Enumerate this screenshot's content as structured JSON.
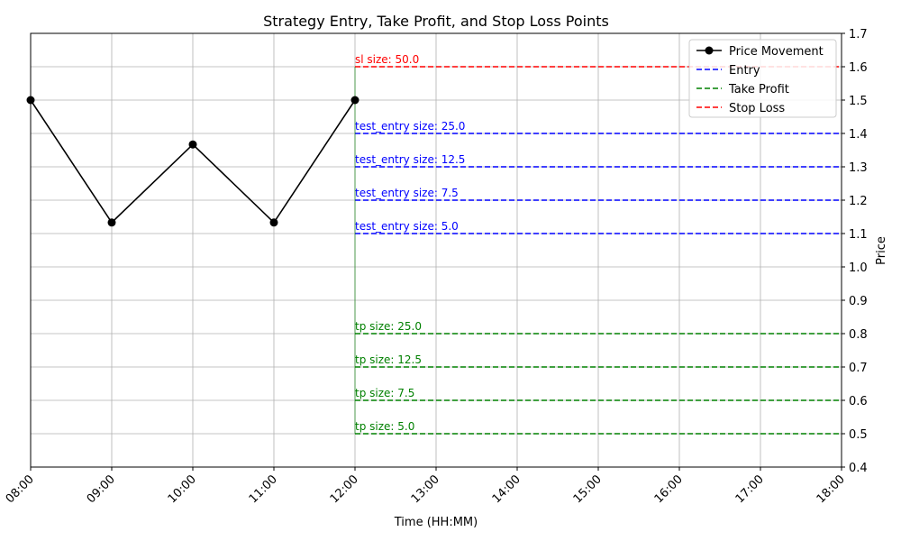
{
  "chart_data": {
    "type": "line",
    "title": "Strategy Entry, Take Profit, and Stop Loss Points",
    "xlabel": "Time (HH:MM)",
    "ylabel": "Price",
    "x_ticks": [
      "08:00",
      "09:00",
      "10:00",
      "11:00",
      "12:00",
      "13:00",
      "14:00",
      "15:00",
      "16:00",
      "17:00",
      "18:00"
    ],
    "xlim": [
      "08:00",
      "18:00"
    ],
    "ylim": [
      0.4,
      1.7
    ],
    "y_ticks": [
      0.4,
      0.5,
      0.6,
      0.7,
      0.8,
      0.9,
      1.0,
      1.1,
      1.2,
      1.3,
      1.4,
      1.5,
      1.6,
      1.7
    ],
    "y_axis_side": "right",
    "grid": true,
    "legend_position": "top-right",
    "series": [
      {
        "name": "Price Movement",
        "style": "solid-with-markers",
        "color": "#000000",
        "x": [
          "08:00",
          "09:00",
          "10:00",
          "11:00",
          "12:00"
        ],
        "y": [
          1.5,
          1.133,
          1.367,
          1.133,
          1.5
        ]
      }
    ],
    "levels": [
      {
        "group": "Stop Loss",
        "label": "sl size: 50.0",
        "price": 1.6,
        "start": "12:00",
        "end": "18:00",
        "color": "#ff0000"
      },
      {
        "group": "Entry",
        "label": "test_entry size: 25.0",
        "price": 1.4,
        "start": "12:00",
        "end": "18:00",
        "color": "#0000ff"
      },
      {
        "group": "Entry",
        "label": "test_entry size: 12.5",
        "price": 1.3,
        "start": "12:00",
        "end": "18:00",
        "color": "#0000ff"
      },
      {
        "group": "Entry",
        "label": "test_entry size: 7.5",
        "price": 1.2,
        "start": "12:00",
        "end": "18:00",
        "color": "#0000ff"
      },
      {
        "group": "Entry",
        "label": "test_entry size: 5.0",
        "price": 1.1,
        "start": "12:00",
        "end": "18:00",
        "color": "#0000ff"
      },
      {
        "group": "Take Profit",
        "label": "tp size: 25.0",
        "price": 0.8,
        "start": "12:00",
        "end": "18:00",
        "color": "#008000"
      },
      {
        "group": "Take Profit",
        "label": "tp size: 12.5",
        "price": 0.7,
        "start": "12:00",
        "end": "18:00",
        "color": "#008000"
      },
      {
        "group": "Take Profit",
        "label": "tp size: 7.5",
        "price": 0.6,
        "start": "12:00",
        "end": "18:00",
        "color": "#008000"
      },
      {
        "group": "Take Profit",
        "label": "tp size: 5.0",
        "price": 0.5,
        "start": "12:00",
        "end": "18:00",
        "color": "#008000"
      }
    ],
    "legend": [
      {
        "label": "Price Movement",
        "style": "solid-with-markers",
        "color": "#000000"
      },
      {
        "label": "Entry",
        "style": "dashed",
        "color": "#0000ff"
      },
      {
        "label": "Take Profit",
        "style": "dashed",
        "color": "#008000"
      },
      {
        "label": "Stop Loss",
        "style": "dashed",
        "color": "#ff0000"
      }
    ]
  }
}
